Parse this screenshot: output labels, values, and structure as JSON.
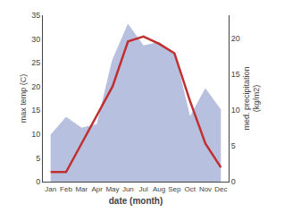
{
  "chart_data": {
    "type": "line",
    "xlabel": "date (month)",
    "ylabel": "max temp (C)",
    "y2label": "med. precipitation\n(kg/m2)",
    "categories": [
      "Jan",
      "Feb",
      "Mar",
      "Apr",
      "May",
      "Jun",
      "Jul",
      "Aug",
      "Sep",
      "Oct",
      "Nov",
      "Dec"
    ],
    "series": [
      {
        "type": "area",
        "axis": "y2",
        "color": "#b8c0e0",
        "values": [
          6.5,
          9,
          7.5,
          8,
          17,
          22,
          19,
          19.5,
          18,
          9,
          13,
          10
        ]
      },
      {
        "type": "line",
        "color": "#c03030",
        "values": [
          2,
          2,
          8,
          14,
          20,
          29.5,
          30.5,
          29,
          27,
          17,
          8,
          3
        ]
      }
    ],
    "ylim": [
      0,
      35
    ],
    "yticks": [
      0,
      5,
      10,
      15,
      20,
      25,
      30,
      35
    ],
    "y2lim": [
      0,
      23.3
    ],
    "y2ticks": [
      0,
      5,
      10,
      15,
      20
    ],
    "grid": false
  }
}
